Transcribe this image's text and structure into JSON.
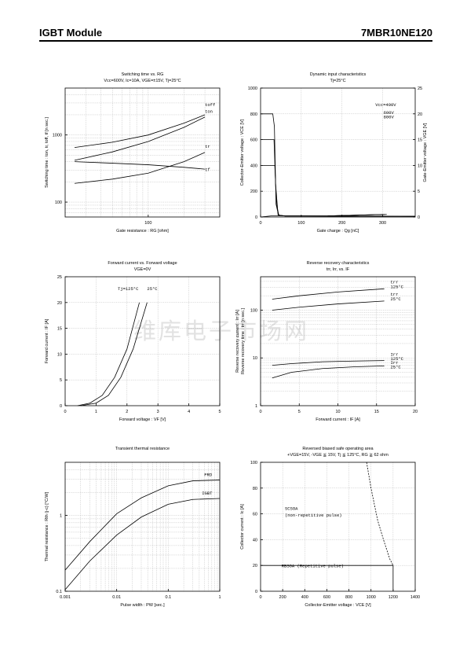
{
  "header": {
    "left": "IGBT Module",
    "right": "7MBR10NE120"
  },
  "watermark": "维库电子市场网",
  "charts": [
    {
      "id": "c1",
      "type": "line",
      "xscale": "log",
      "yscale": "log",
      "title": "Switching time  vs.  RG",
      "subtitle": "Vcc=600V, Ic=10A, VGE=±15V, Tj=25°C",
      "xlabel": "Gate  resistance  :  RG [ohm]",
      "ylabel": "Switching  time  :  ton, tr, toff, tf  [n sec.]",
      "xlim": [
        20,
        400
      ],
      "ylim": [
        60,
        5000
      ],
      "xticks": [
        100
      ],
      "xtick_labels": [
        "100"
      ],
      "yticks": [
        100,
        1000
      ],
      "ytick_labels": [
        "100",
        "1000"
      ],
      "series": [
        {
          "name": "toff",
          "points": [
            [
              24,
              650
            ],
            [
              50,
              780
            ],
            [
              100,
              1000
            ],
            [
              200,
              1500
            ],
            [
              300,
              2000
            ]
          ]
        },
        {
          "name": "ton",
          "points": [
            [
              24,
              420
            ],
            [
              50,
              560
            ],
            [
              100,
              800
            ],
            [
              200,
              1300
            ],
            [
              300,
              1850
            ]
          ]
        },
        {
          "name": "tr",
          "points": [
            [
              24,
              190
            ],
            [
              50,
              220
            ],
            [
              100,
              270
            ],
            [
              200,
              400
            ],
            [
              300,
              550
            ]
          ]
        },
        {
          "name": "tf",
          "points": [
            [
              24,
              400
            ],
            [
              50,
              380
            ],
            [
              100,
              360
            ],
            [
              200,
              330
            ],
            [
              300,
              310
            ]
          ]
        }
      ],
      "labels": [
        {
          "text": "toff",
          "at": [
            300,
            2700
          ]
        },
        {
          "text": "ton",
          "at": [
            300,
            2150
          ]
        },
        {
          "text": "tr",
          "at": [
            300,
            640
          ]
        },
        {
          "text": "tf",
          "at": [
            300,
            290
          ]
        }
      ]
    },
    {
      "id": "c2",
      "type": "line",
      "xscale": "linear",
      "yscale": "linear",
      "title": "Dynamic  input  characteristics",
      "subtitle": "Tj=25°C",
      "xlabel": "Gate  charge  :  Qg  [nC]",
      "ylabel": "Collector-Emitter  voltage   :  VCE [V]",
      "y2label": "Gate-Emitter  voltage  :  VGE  [V]",
      "xlim": [
        0,
        380
      ],
      "ylim": [
        0,
        1000
      ],
      "y2lim": [
        0,
        25
      ],
      "xticks": [
        0,
        100,
        200,
        300
      ],
      "xtick_labels": [
        "0",
        "100",
        "200",
        "300"
      ],
      "yticks": [
        0,
        200,
        400,
        600,
        800,
        1000
      ],
      "ytick_labels": [
        "0",
        "200",
        "400",
        "600",
        "800",
        "1000"
      ],
      "y2ticks": [
        0,
        5,
        10,
        15,
        20,
        25
      ],
      "y2tick_labels": [
        "0",
        "5",
        "10",
        "15",
        "20",
        "25"
      ],
      "series": [
        {
          "name": "VCE 800V",
          "points": [
            [
              0,
              800
            ],
            [
              30,
              800
            ],
            [
              34,
              700
            ],
            [
              38,
              100
            ],
            [
              44,
              15
            ],
            [
              60,
              8
            ],
            [
              380,
              5
            ]
          ]
        },
        {
          "name": "VCE 600V",
          "points": [
            [
              0,
              600
            ],
            [
              33,
              600
            ],
            [
              37,
              250
            ],
            [
              43,
              15
            ],
            [
              60,
              8
            ],
            [
              380,
              5
            ]
          ]
        },
        {
          "name": "VCE 400V",
          "points": [
            [
              0,
              400
            ],
            [
              35,
              400
            ],
            [
              39,
              100
            ],
            [
              45,
              12
            ],
            [
              60,
              8
            ],
            [
              380,
              5
            ]
          ]
        },
        {
          "name": "VGE",
          "points": [
            [
              0,
              0
            ],
            [
              28,
              9
            ],
            [
              40,
              9.1
            ],
            [
              165,
              9.1
            ],
            [
              180,
              9.5
            ],
            [
              300,
              19.5
            ]
          ]
        },
        {
          "name": "VGE",
          "points": [
            [
              165,
              9.1
            ],
            [
              180,
              9.5
            ],
            [
              305,
              19.7
            ]
          ]
        },
        {
          "name": "VGE",
          "points": [
            [
              165,
              9.1
            ],
            [
              180,
              9.5
            ],
            [
              310,
              19.9
            ]
          ]
        }
      ],
      "labels": [
        {
          "text": "Vcc=400V",
          "at": [
            282,
            860
          ]
        },
        {
          "text": "600V",
          "at": [
            302,
            800
          ]
        },
        {
          "text": "800V",
          "at": [
            302,
            765
          ]
        }
      ]
    },
    {
      "id": "c3",
      "type": "line",
      "xscale": "linear",
      "yscale": "linear",
      "title": "Forward  current  vs.  Forward  voltage",
      "subtitle": "VGE=0V",
      "xlabel": "Forward  voltage  :  VF [V]",
      "ylabel": "Forward  current  :  IF  [A]",
      "xlim": [
        0,
        5
      ],
      "ylim": [
        0,
        25
      ],
      "xticks": [
        0,
        1,
        2,
        3,
        4,
        5
      ],
      "xtick_labels": [
        "0",
        "1",
        "2",
        "3",
        "4",
        "5"
      ],
      "yticks": [
        0,
        5,
        10,
        15,
        20,
        25
      ],
      "ytick_labels": [
        "0",
        "5",
        "10",
        "15",
        "20",
        "25"
      ],
      "series": [
        {
          "name": "Tj=125°C",
          "points": [
            [
              0.4,
              0
            ],
            [
              0.8,
              0.5
            ],
            [
              1.2,
              2
            ],
            [
              1.6,
              5.5
            ],
            [
              2.0,
              11
            ],
            [
              2.4,
              20
            ]
          ]
        },
        {
          "name": "25°C",
          "points": [
            [
              0.5,
              0
            ],
            [
              1.0,
              0.5
            ],
            [
              1.4,
              2
            ],
            [
              1.8,
              5.5
            ],
            [
              2.2,
              11
            ],
            [
              2.65,
              20
            ]
          ]
        }
      ],
      "labels": [
        {
          "text": "Tj=125°C",
          "at": [
            1.7,
            22.4
          ]
        },
        {
          "text": "25°C",
          "at": [
            2.65,
            22.4
          ]
        }
      ]
    },
    {
      "id": "c4",
      "type": "line",
      "xscale": "linear",
      "yscale": "log",
      "title": "Reverse  recovery  characteristics",
      "subtitle": "trr,  Irr,  vs.  IF",
      "xlabel": "Forward  current  :  IF  [A]",
      "ylabel": "Reverse  recovery  current  :  Irr  [A]",
      "ylabel2": "Reverse  recovery  time  :  trr [n sec.]",
      "xlim": [
        0,
        20
      ],
      "ylim": [
        1,
        500
      ],
      "xticks": [
        0,
        5,
        10,
        15,
        20
      ],
      "xtick_labels": [
        "0",
        "5",
        "10",
        "15",
        "20"
      ],
      "yticks": [
        1,
        10,
        100
      ],
      "ytick_labels": [
        "1",
        "10",
        "100"
      ],
      "series": [
        {
          "name": "trr 125°C",
          "points": [
            [
              1.5,
              170
            ],
            [
              5,
              200
            ],
            [
              10,
              240
            ],
            [
              16,
              280
            ]
          ]
        },
        {
          "name": "trr 25°C",
          "points": [
            [
              1.5,
              100
            ],
            [
              5,
              115
            ],
            [
              10,
              135
            ],
            [
              16,
              155
            ]
          ]
        },
        {
          "name": "Irr 125°C",
          "points": [
            [
              1.5,
              7
            ],
            [
              4,
              7.6
            ],
            [
              8,
              8.3
            ],
            [
              12,
              8.6
            ],
            [
              16,
              8.8
            ]
          ]
        },
        {
          "name": "Irr 25°C",
          "points": [
            [
              1.5,
              3.8
            ],
            [
              4,
              5
            ],
            [
              8,
              6
            ],
            [
              12,
              6.5
            ],
            [
              16,
              6.8
            ]
          ]
        }
      ],
      "labels": [
        {
          "text": "trr",
          "at": [
            16.8,
            360
          ]
        },
        {
          "text": "125°C",
          "at": [
            16.8,
            290
          ]
        },
        {
          "text": "trr",
          "at": [
            16.8,
            200
          ]
        },
        {
          "text": "25°C",
          "at": [
            16.8,
            160
          ]
        },
        {
          "text": "Irr",
          "at": [
            16.8,
            11
          ]
        },
        {
          "text": "125°C",
          "at": [
            16.8,
            9
          ]
        },
        {
          "text": "Irr",
          "at": [
            16.8,
            7.5
          ]
        },
        {
          "text": "25°C",
          "at": [
            16.8,
            6
          ]
        }
      ]
    },
    {
      "id": "c5",
      "type": "line",
      "xscale": "log",
      "yscale": "log",
      "title": "Transient  thermal  resistance",
      "subtitle": "",
      "xlabel": "Pulse  width  :  PW  [sec.]",
      "ylabel": "Thermal  resistance  :  Rth (j-c)  [°C/W]",
      "xlim": [
        0.001,
        1
      ],
      "ylim": [
        0.1,
        5
      ],
      "xticks": [
        0.001,
        0.01,
        0.1,
        1
      ],
      "xtick_labels": [
        "0.001",
        "0.01",
        "0.1",
        "1"
      ],
      "yticks": [
        0.1,
        1
      ],
      "ytick_labels": [
        "0.1",
        "1"
      ],
      "series": [
        {
          "name": "FRD",
          "points": [
            [
              0.001,
              0.19
            ],
            [
              0.003,
              0.45
            ],
            [
              0.01,
              1.05
            ],
            [
              0.03,
              1.7
            ],
            [
              0.1,
              2.45
            ],
            [
              0.3,
              2.85
            ],
            [
              1,
              2.92
            ]
          ]
        },
        {
          "name": "IGBT",
          "points": [
            [
              0.001,
              0.105
            ],
            [
              0.003,
              0.25
            ],
            [
              0.01,
              0.55
            ],
            [
              0.03,
              0.95
            ],
            [
              0.1,
              1.4
            ],
            [
              0.3,
              1.62
            ],
            [
              1,
              1.67
            ]
          ]
        }
      ],
      "labels": [
        {
          "text": "FRD",
          "at": [
            0.5,
            3.3
          ]
        },
        {
          "text": "IGBT",
          "at": [
            0.45,
            1.87
          ]
        }
      ]
    },
    {
      "id": "c6",
      "type": "line",
      "xscale": "linear",
      "yscale": "linear",
      "title": "Reversed  biased  safe  operating  area",
      "subtitle": "+VGE=15V,  -VGE ≦ 15V,  Tj ≦ 125°C,  RG ≧ 62 ohm",
      "xlabel": "Collector-Emitter  voltage  :  VCE [V]",
      "ylabel": "Collector  current  :  Ic [A]",
      "xlim": [
        0,
        1400
      ],
      "ylim": [
        0,
        100
      ],
      "xticks": [
        0,
        200,
        400,
        600,
        800,
        1000,
        1200,
        1400
      ],
      "xtick_labels": [
        "0",
        "200",
        "400",
        "600",
        "800",
        "1000",
        "1200",
        "1400"
      ],
      "yticks": [
        0,
        20,
        40,
        60,
        80,
        100
      ],
      "ytick_labels": [
        "0",
        "20",
        "40",
        "60",
        "80",
        "100"
      ],
      "series": [
        {
          "name": "RBSOA",
          "points": [
            [
              0,
              20
            ],
            [
              1200,
              20
            ],
            [
              1200,
              0
            ]
          ]
        },
        {
          "name": "SCSOA",
          "dashed": true,
          "points": [
            [
              960,
              100
            ],
            [
              1000,
              80
            ],
            [
              1060,
              55
            ],
            [
              1120,
              38
            ],
            [
              1170,
              25
            ],
            [
              1200,
              20
            ]
          ]
        }
      ],
      "labels": [
        {
          "text": "SCSOA",
          "at": [
            220,
            63
          ]
        },
        {
          "text": "(non-repetitive pulse)",
          "at": [
            220,
            58
          ]
        },
        {
          "text": "RBSOA (Repetitive pulse)",
          "at": [
            190,
            18.5
          ]
        }
      ]
    }
  ]
}
